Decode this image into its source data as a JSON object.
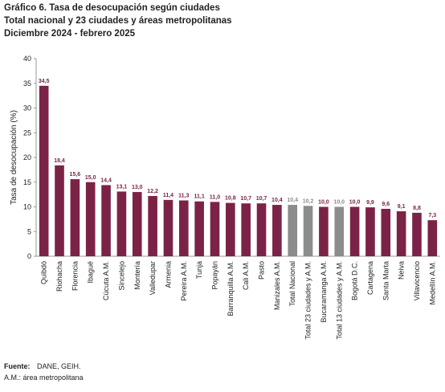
{
  "chart_data": {
    "type": "bar",
    "title": "Gráfico 6. Tasa de desocupación según ciudades",
    "subtitle": [
      "Total nacional y 23 ciudades y áreas metropolitanas",
      "Diciembre 2024 - febrero 2025"
    ],
    "ylabel": "Tasa de desocupación (%)",
    "categories": [
      "Quibdó",
      "Riohacha",
      "Florencia",
      "Ibagué",
      "Cúcuta A.M.",
      "Sincelejo",
      "Montería",
      "Valledupar",
      "Armenia",
      "Pereira A.M.",
      "Tunja",
      "Popayán",
      "Barranquilla A.M.",
      "Cali A.M.",
      "Pasto",
      "Manizales A.M.",
      "Total Nacional",
      "Total 23 ciudades y A.M.",
      "Bucaramanga A.M.",
      "Total 13 ciudades y A.M.",
      "Bogotá D.C.",
      "Cartagena",
      "Santa Marta",
      "Neiva",
      "Villavicencio",
      "Medellín A.M."
    ],
    "values": [
      34.5,
      18.4,
      15.6,
      15.0,
      14.4,
      13.1,
      13.0,
      12.2,
      11.4,
      11.3,
      11.1,
      11.0,
      10.8,
      10.7,
      10.7,
      10.4,
      10.4,
      10.2,
      10.0,
      10.0,
      10.0,
      9.9,
      9.6,
      9.1,
      8.8,
      7.3
    ],
    "value_labels": [
      "34,5",
      "18,4",
      "15,6",
      "15,0",
      "14,4",
      "13,1",
      "13,0",
      "12,2",
      "11,4",
      "11,3",
      "11,1",
      "11,0",
      "10,8",
      "10,7",
      "10,7",
      "10,4",
      "10,4",
      "10,2",
      "10,0",
      "10,0",
      "10,0",
      "9,9",
      "9,6",
      "9,1",
      "8,8",
      "7,3"
    ],
    "colors": [
      "#7b2346",
      "#7b2346",
      "#7b2346",
      "#7b2346",
      "#7b2346",
      "#7b2346",
      "#7b2346",
      "#7b2346",
      "#7b2346",
      "#7b2346",
      "#7b2346",
      "#7b2346",
      "#7b2346",
      "#7b2346",
      "#7b2346",
      "#7b2346",
      "#8c8c8c",
      "#8c8c8c",
      "#7b2346",
      "#8c8c8c",
      "#7b2346",
      "#7b2346",
      "#7b2346",
      "#7b2346",
      "#7b2346",
      "#7b2346"
    ],
    "ylim": [
      0,
      40
    ],
    "yticks": [
      0,
      5,
      10,
      15,
      20,
      25,
      30,
      35,
      40
    ],
    "grid": false
  },
  "footer": {
    "source_label": "Fuente:",
    "source": "DANE, GEIH.",
    "note": "A.M.: área metropolitana"
  }
}
